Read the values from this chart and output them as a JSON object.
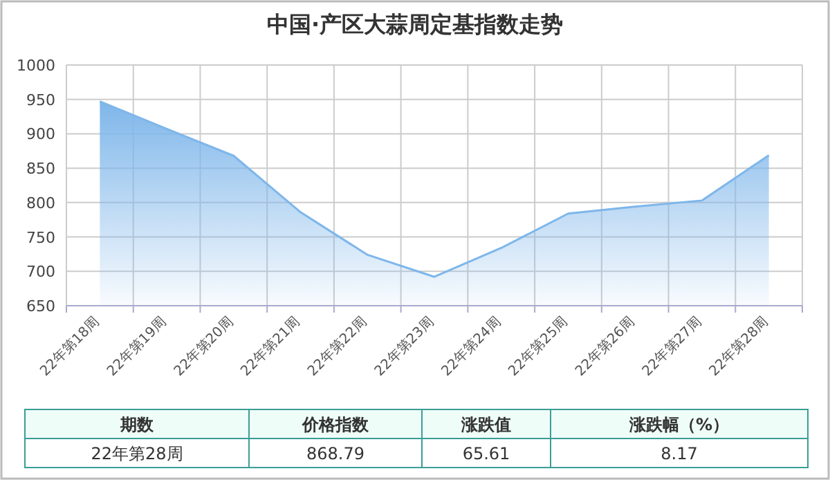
{
  "chart_data": {
    "type": "area",
    "title": "中国·产区大蒜周定基指数走势",
    "categories": [
      "22年第18周",
      "22年第19周",
      "22年第20周",
      "22年第21周",
      "22年第22周",
      "22年第23周",
      "22年第24周",
      "22年第25周",
      "22年第26周",
      "22年第27周",
      "22年第28周"
    ],
    "series": [
      {
        "color": "#7eb6ea",
        "values": [
          947,
          907,
          868,
          786,
          724,
          692,
          734,
          784,
          794,
          803,
          868.79
        ]
      }
    ],
    "ylim": [
      650,
      1000
    ],
    "yticks": [
      650,
      700,
      750,
      800,
      850,
      900,
      950,
      1000
    ],
    "grid": true,
    "annotations": [
      "期数",
      "价格指数",
      "涨跌值",
      "涨跌幅（%）",
      "22年第28周",
      "868.79",
      "65.61",
      "8.17"
    ]
  }
}
